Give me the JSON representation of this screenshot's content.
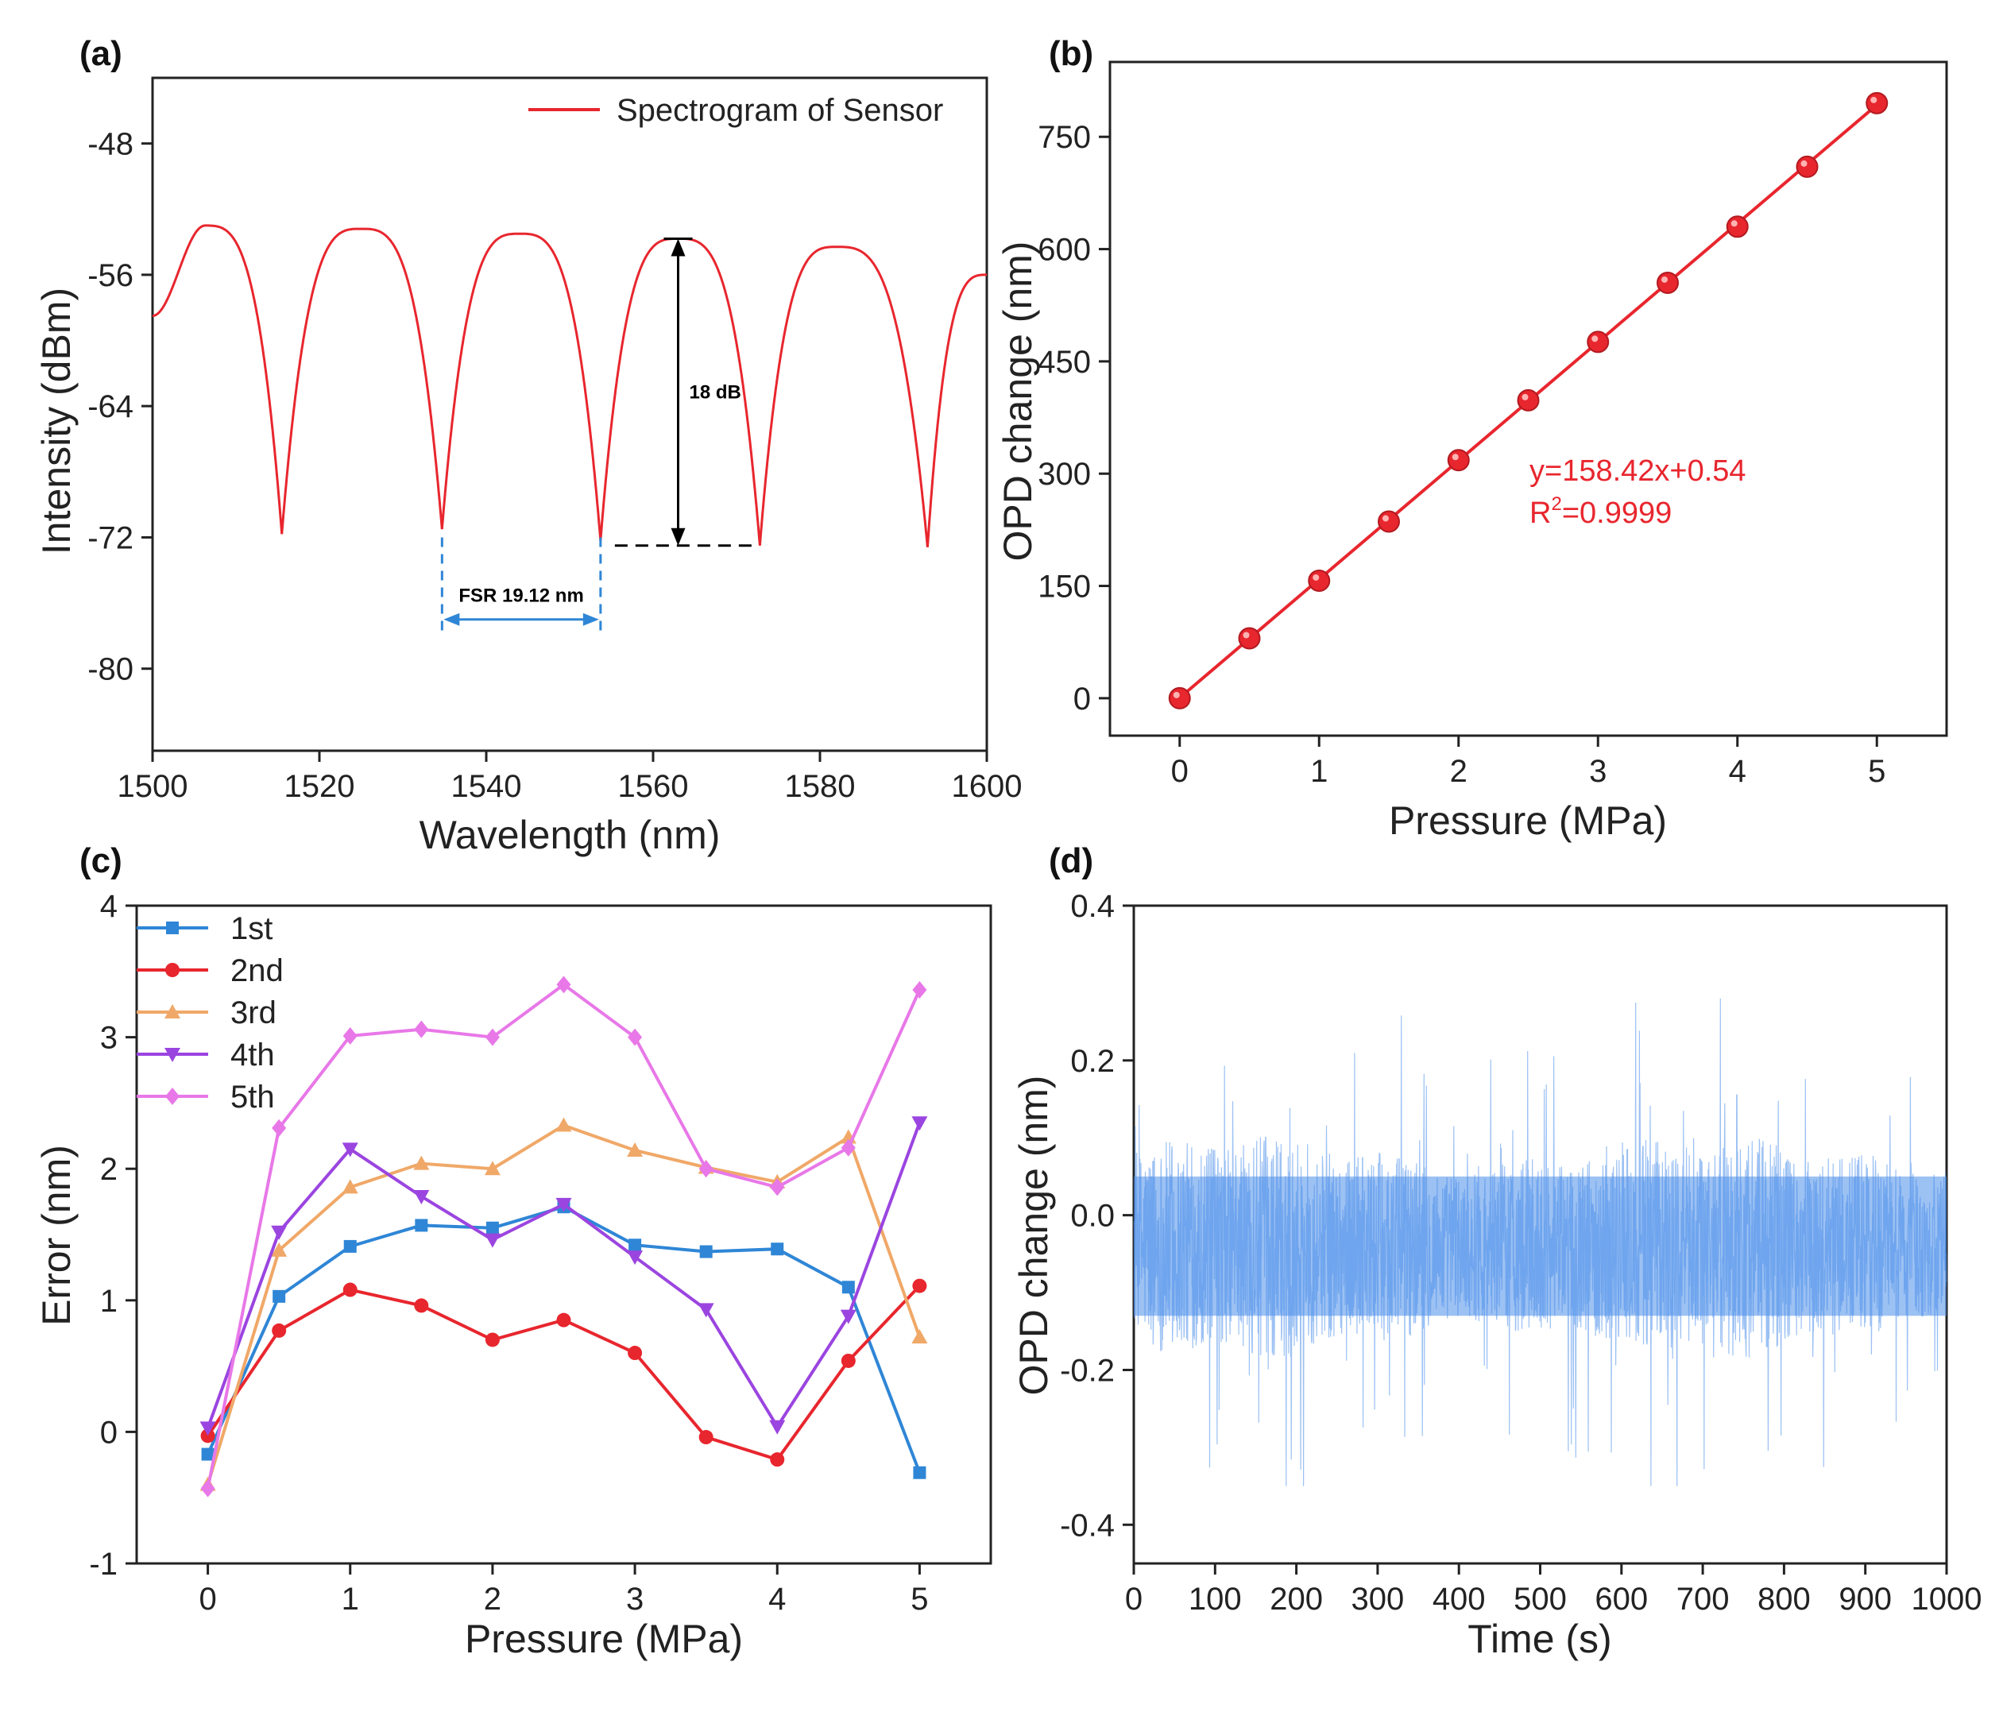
{
  "chart_data": [
    {
      "panel": "(a)",
      "type": "line",
      "xlabel": "Wavelength (nm)",
      "ylabel": "Intensity (dBm)",
      "xlim": [
        1500,
        1600
      ],
      "ylim": [
        -85,
        -44
      ],
      "xticks": [
        1500,
        1520,
        1540,
        1560,
        1580,
        1600
      ],
      "yticks": [
        -48,
        -56,
        -64,
        -72,
        -80
      ],
      "legend": "top-right",
      "series": [
        {
          "name": "Spectrogram of Sensor",
          "color": "#e8262e",
          "peaks_x": [
            1506.3,
            1525.0,
            1544.0,
            1563.0,
            1582.0
          ],
          "peaks_y": [
            -53.0,
            -53.2,
            -53.5,
            -53.8,
            -54.3
          ],
          "dips_x": [
            1515.5,
            1534.7,
            1553.7,
            1572.8,
            1592.9
          ],
          "dips_y": [
            -71.8,
            -71.5,
            -72.2,
            -72.5,
            -72.6
          ]
        }
      ],
      "annotations": {
        "depth": "18 dB",
        "fsr": "FSR 19.12 nm"
      }
    },
    {
      "panel": "(b)",
      "type": "scatter",
      "xlabel": "Pressure (MPa)",
      "ylabel": "OPD change (nm)",
      "xlim": [
        -0.5,
        5.5
      ],
      "ylim": [
        -50,
        850
      ],
      "xticks": [
        0,
        1,
        2,
        3,
        4,
        5
      ],
      "yticks": [
        0,
        150,
        300,
        450,
        600,
        750
      ],
      "x": [
        0,
        0.5,
        1,
        1.5,
        2,
        2.5,
        3,
        3.5,
        4,
        4.5,
        5
      ],
      "y": [
        0,
        80,
        157,
        236,
        318,
        398,
        476,
        555,
        630,
        710,
        795
      ],
      "fit": {
        "slope": 158.42,
        "intercept": 0.54,
        "equation": "y=158.42x+0.54",
        "r2_prefix": "R",
        "r2_sup": "2",
        "r2_rest": "=0.9999"
      },
      "color": "#e8262e"
    },
    {
      "panel": "(c)",
      "type": "line",
      "xlabel": "Pressure (MPa)",
      "ylabel": "Error (nm)",
      "xlim": [
        -0.5,
        5.5
      ],
      "ylim": [
        -1,
        4
      ],
      "xticks": [
        0,
        1,
        2,
        3,
        4,
        5
      ],
      "yticks": [
        -1,
        0,
        1,
        2,
        3,
        4
      ],
      "categories": [
        0,
        0.5,
        1,
        1.5,
        2,
        2.5,
        3,
        3.5,
        4,
        4.5,
        5
      ],
      "legend": "top-left",
      "series": [
        {
          "name": "1st",
          "color": "#2f86d6",
          "marker": "square",
          "values": [
            -0.17,
            1.03,
            1.41,
            1.57,
            1.55,
            1.71,
            1.42,
            1.37,
            1.39,
            1.1,
            -0.31
          ]
        },
        {
          "name": "2nd",
          "color": "#e8262e",
          "marker": "circle",
          "values": [
            -0.03,
            0.77,
            1.08,
            0.96,
            0.7,
            0.85,
            0.6,
            -0.04,
            -0.21,
            0.54,
            1.11
          ]
        },
        {
          "name": "3rd",
          "color": "#f0a868",
          "marker": "triangle-up",
          "values": [
            -0.4,
            1.38,
            1.86,
            2.04,
            2.0,
            2.33,
            2.14,
            2.01,
            1.9,
            2.24,
            0.72
          ]
        },
        {
          "name": "4th",
          "color": "#9b45e0",
          "marker": "triangle-down",
          "values": [
            0.03,
            1.52,
            2.15,
            1.79,
            1.46,
            1.73,
            1.33,
            0.93,
            0.04,
            0.88,
            2.35
          ]
        },
        {
          "name": "5th",
          "color": "#e878e8",
          "marker": "diamond",
          "values": [
            -0.43,
            2.31,
            3.01,
            3.06,
            3.0,
            3.4,
            3.0,
            2.0,
            1.86,
            2.16,
            3.36
          ]
        }
      ]
    },
    {
      "panel": "(d)",
      "type": "line",
      "xlabel": "Time (s)",
      "ylabel": "OPD change (nm)",
      "xlim": [
        0,
        1000
      ],
      "ylim": [
        -0.45,
        0.4
      ],
      "xticks": [
        0,
        100,
        200,
        300,
        400,
        500,
        600,
        700,
        800,
        900,
        1000
      ],
      "yticks": [
        0.4,
        0.2,
        0.0,
        -0.2,
        -0.4
      ],
      "ytick_labels": [
        "0.4",
        "0.2",
        "0.0",
        "-0.2",
        "-0.4"
      ],
      "color": "#4a8eea",
      "noise": {
        "mean": -0.04,
        "core_halfwidth": 0.12,
        "spike_max": 0.28,
        "spike_min": -0.35
      }
    }
  ]
}
